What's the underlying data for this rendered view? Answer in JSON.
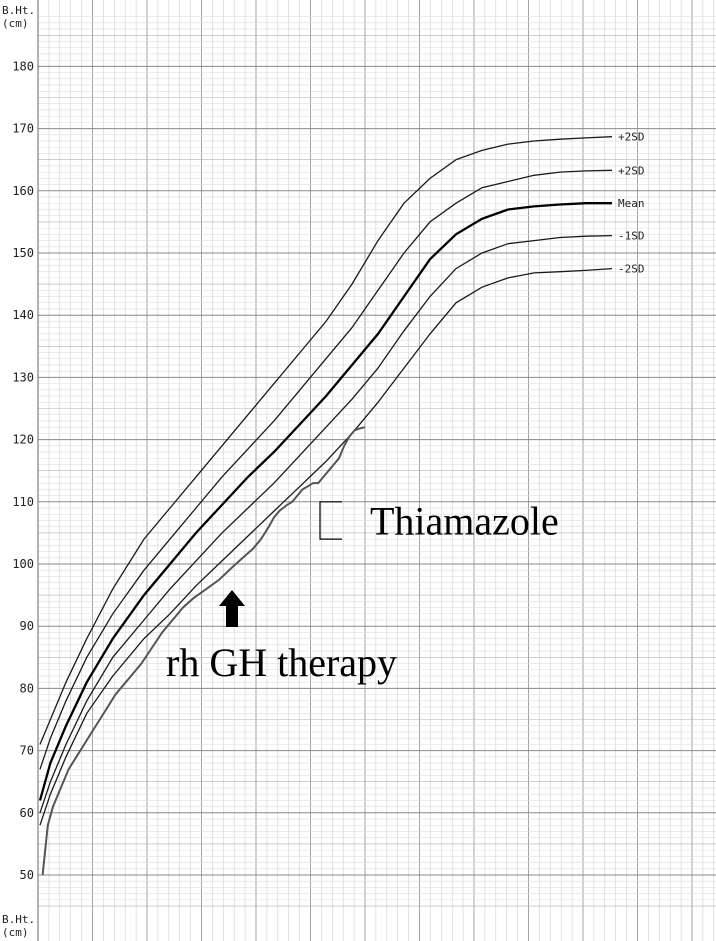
{
  "chart_data": {
    "type": "line",
    "title": "",
    "ylabel_top": [
      "B.Ht.",
      "(cm)"
    ],
    "ylabel_bottom": [
      "B.Ht.",
      "(cm)"
    ],
    "ylim": [
      45,
      185
    ],
    "yticks": [
      50,
      60,
      70,
      80,
      90,
      100,
      110,
      120,
      130,
      140,
      150,
      160,
      170,
      180
    ],
    "x_ticks_labeled": false,
    "grid": true,
    "reference_curves": [
      {
        "label": "+2SD",
        "color": "#1a1a1a",
        "width": 1.3,
        "points": [
          [
            0,
            71
          ],
          [
            4,
            75
          ],
          [
            10,
            81
          ],
          [
            18,
            88
          ],
          [
            28,
            96
          ],
          [
            40,
            104
          ],
          [
            50,
            109
          ],
          [
            60,
            114
          ],
          [
            70,
            119
          ],
          [
            80,
            124
          ],
          [
            90,
            129
          ],
          [
            100,
            134
          ],
          [
            110,
            139
          ],
          [
            120,
            145
          ],
          [
            130,
            152
          ],
          [
            140,
            158
          ],
          [
            150,
            162
          ],
          [
            160,
            165
          ],
          [
            170,
            166.5
          ],
          [
            180,
            167.5
          ],
          [
            190,
            168
          ],
          [
            200,
            168.3
          ],
          [
            210,
            168.5
          ],
          [
            220,
            168.7
          ]
        ]
      },
      {
        "label": "+2SD",
        "color": "#1a1a1a",
        "width": 1.3,
        "points": [
          [
            0,
            67
          ],
          [
            4,
            72
          ],
          [
            10,
            78
          ],
          [
            18,
            85
          ],
          [
            28,
            92
          ],
          [
            40,
            99
          ],
          [
            50,
            104
          ],
          [
            60,
            109
          ],
          [
            70,
            114
          ],
          [
            80,
            118.5
          ],
          [
            90,
            123
          ],
          [
            100,
            128
          ],
          [
            110,
            133
          ],
          [
            120,
            138
          ],
          [
            130,
            144
          ],
          [
            140,
            150
          ],
          [
            150,
            155
          ],
          [
            160,
            158
          ],
          [
            170,
            160.5
          ],
          [
            180,
            161.5
          ],
          [
            190,
            162.5
          ],
          [
            200,
            163
          ],
          [
            210,
            163.2
          ],
          [
            220,
            163.3
          ]
        ]
      },
      {
        "label": "Mean",
        "color": "#000000",
        "width": 2.3,
        "points": [
          [
            0,
            62
          ],
          [
            4,
            68
          ],
          [
            10,
            74
          ],
          [
            18,
            81
          ],
          [
            28,
            88
          ],
          [
            40,
            95
          ],
          [
            50,
            100
          ],
          [
            60,
            105
          ],
          [
            70,
            109.5
          ],
          [
            80,
            114
          ],
          [
            90,
            118
          ],
          [
            100,
            122.5
          ],
          [
            110,
            127
          ],
          [
            120,
            132
          ],
          [
            130,
            137
          ],
          [
            140,
            143
          ],
          [
            150,
            149
          ],
          [
            160,
            153
          ],
          [
            170,
            155.5
          ],
          [
            180,
            157
          ],
          [
            190,
            157.5
          ],
          [
            200,
            157.8
          ],
          [
            210,
            158
          ],
          [
            220,
            158
          ]
        ]
      },
      {
        "label": "-1SD",
        "color": "#1a1a1a",
        "width": 1.3,
        "points": [
          [
            0,
            60
          ],
          [
            4,
            65
          ],
          [
            10,
            71
          ],
          [
            18,
            78
          ],
          [
            28,
            85
          ],
          [
            40,
            91
          ],
          [
            50,
            96
          ],
          [
            60,
            100.5
          ],
          [
            70,
            105
          ],
          [
            80,
            109
          ],
          [
            90,
            113
          ],
          [
            100,
            117.5
          ],
          [
            110,
            122
          ],
          [
            120,
            126.5
          ],
          [
            130,
            131.5
          ],
          [
            140,
            137.5
          ],
          [
            150,
            143
          ],
          [
            160,
            147.5
          ],
          [
            170,
            150
          ],
          [
            180,
            151.5
          ],
          [
            190,
            152
          ],
          [
            200,
            152.5
          ],
          [
            210,
            152.7
          ],
          [
            220,
            152.8
          ]
        ]
      },
      {
        "label": "-2SD",
        "color": "#1a1a1a",
        "width": 1.3,
        "points": [
          [
            0,
            58
          ],
          [
            4,
            63
          ],
          [
            10,
            69
          ],
          [
            18,
            76
          ],
          [
            28,
            82
          ],
          [
            40,
            88
          ],
          [
            50,
            92
          ],
          [
            60,
            96.5
          ],
          [
            70,
            100.5
          ],
          [
            80,
            104.5
          ],
          [
            90,
            108.5
          ],
          [
            100,
            112.5
          ],
          [
            110,
            116.5
          ],
          [
            120,
            121
          ],
          [
            130,
            126
          ],
          [
            140,
            131.5
          ],
          [
            150,
            137
          ],
          [
            160,
            142
          ],
          [
            170,
            144.5
          ],
          [
            180,
            146
          ],
          [
            190,
            146.8
          ],
          [
            200,
            147
          ],
          [
            210,
            147.2
          ],
          [
            220,
            147.5
          ]
        ]
      }
    ],
    "patient_series": {
      "name": "",
      "color": "#555555",
      "points": [
        [
          1,
          50
        ],
        [
          1.5,
          52
        ],
        [
          3,
          58
        ],
        [
          5,
          61
        ],
        [
          7,
          63
        ],
        [
          9,
          65
        ],
        [
          11,
          67
        ],
        [
          14,
          69
        ],
        [
          17,
          71
        ],
        [
          20,
          73
        ],
        [
          23,
          75
        ],
        [
          26,
          77
        ],
        [
          29,
          79
        ],
        [
          33,
          81
        ],
        [
          36,
          82.5
        ],
        [
          39,
          84
        ],
        [
          43,
          86.5
        ],
        [
          47,
          89
        ],
        [
          51,
          91
        ],
        [
          55,
          93
        ],
        [
          59,
          94.5
        ],
        [
          64,
          96
        ],
        [
          69,
          97.5
        ],
        [
          74,
          99.5
        ],
        [
          78,
          101
        ],
        [
          82,
          102.5
        ],
        [
          85,
          104
        ],
        [
          88,
          106
        ],
        [
          90,
          107.5
        ],
        [
          92,
          108.5
        ],
        [
          95,
          109.5
        ],
        [
          97,
          110
        ],
        [
          99,
          111
        ],
        [
          101,
          112
        ],
        [
          103,
          112.5
        ],
        [
          105,
          113
        ],
        [
          107,
          113
        ],
        [
          109,
          114
        ],
        [
          111,
          115
        ],
        [
          113,
          116
        ],
        [
          115,
          117
        ],
        [
          117,
          119
        ],
        [
          119,
          120.5
        ],
        [
          121,
          121.5
        ],
        [
          123,
          121.8
        ],
        [
          125,
          122
        ]
      ]
    },
    "annotations": {
      "therapy_label": "rh GH therapy",
      "therapy_arrow_at": [
        78,
        95
      ],
      "drug_label": "Thiamazole",
      "drug_bracket_y": [
        104,
        110
      ]
    }
  }
}
